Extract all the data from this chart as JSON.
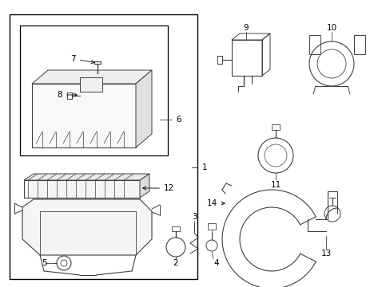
{
  "bg_color": "#ffffff",
  "line_color": "#404040",
  "fig_width": 4.89,
  "fig_height": 3.6,
  "dpi": 100
}
